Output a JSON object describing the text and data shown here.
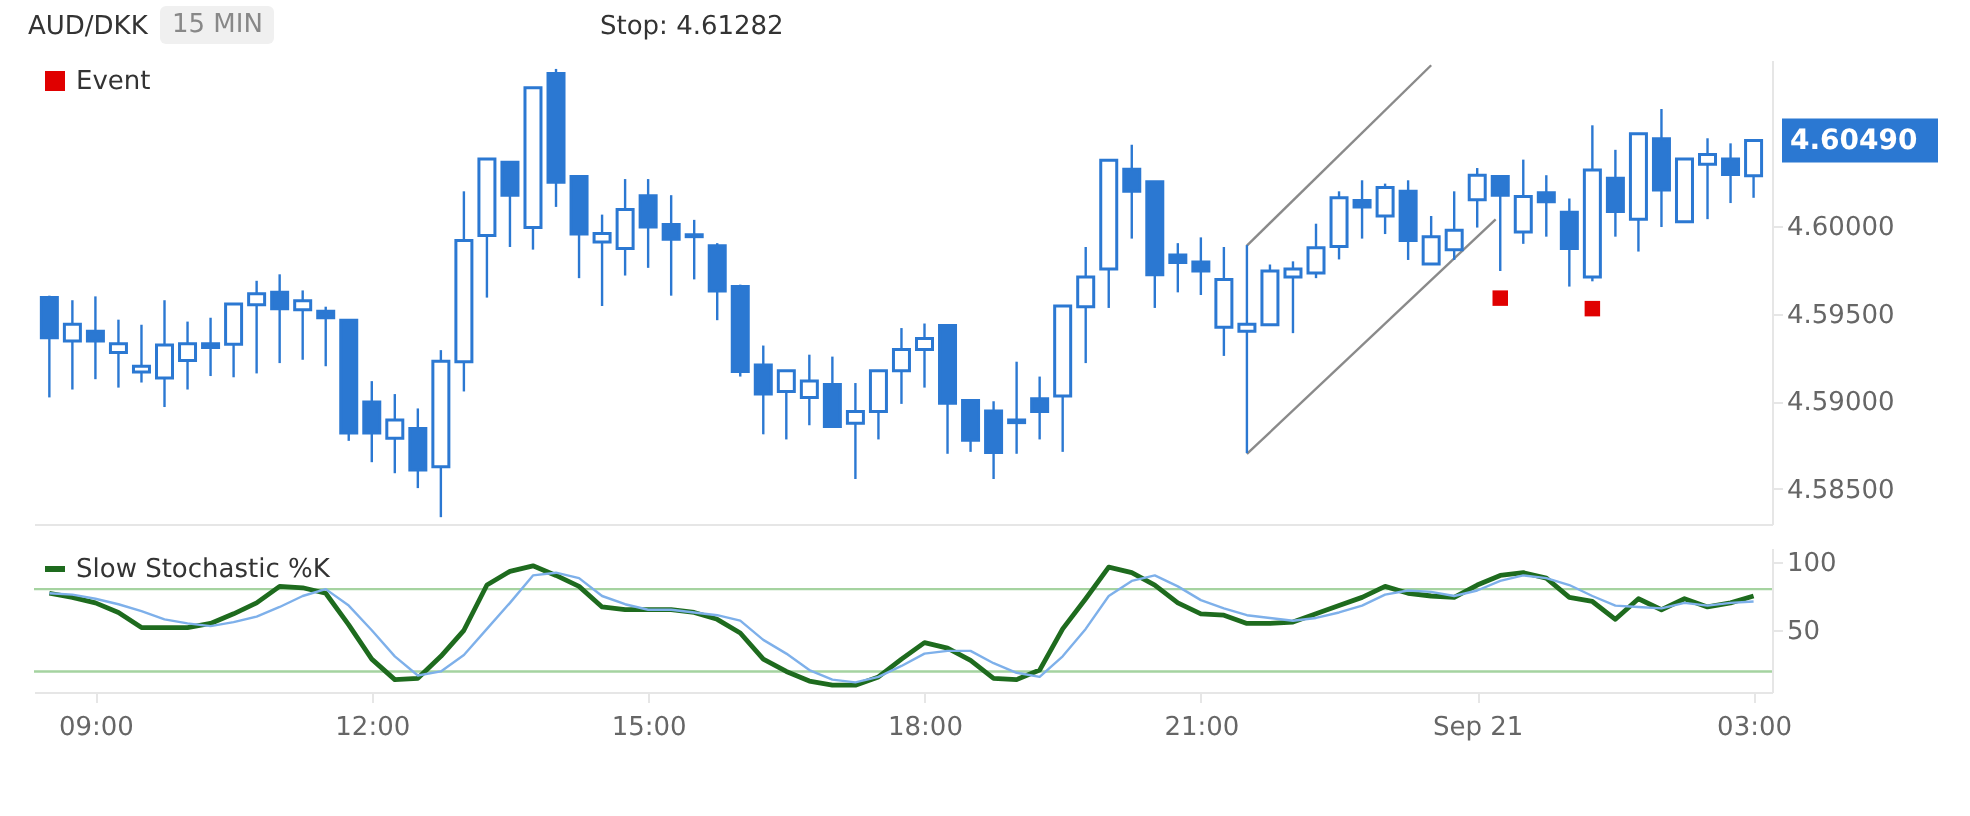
{
  "chart_data": [
    {
      "type": "candlestick",
      "title": "AUD/DKK",
      "subtitle": "15 MIN",
      "color": "#2b78d2",
      "annotations": [
        "Stop: 4.61282",
        "4.60490"
      ],
      "x": [
        "--09-20T08:30",
        "--09-20T08:45",
        "--09-20T09:00",
        "--09-20T09:15",
        "--09-20T09:30",
        "--09-20T09:45",
        "--09-20T10:00",
        "--09-20T10:15",
        "--09-20T10:30",
        "--09-20T10:45",
        "--09-20T11:00",
        "--09-20T11:15",
        "--09-20T11:30",
        "--09-20T11:45",
        "--09-20T12:00",
        "--09-20T12:15",
        "--09-20T12:30",
        "--09-20T12:45",
        "--09-20T13:00",
        "--09-20T13:15",
        "--09-20T13:30",
        "--09-20T13:45",
        "--09-20T14:00",
        "--09-20T14:15",
        "--09-20T14:30",
        "--09-20T14:45",
        "--09-20T15:00",
        "--09-20T15:15",
        "--09-20T15:30",
        "--09-20T15:45",
        "--09-20T16:00",
        "--09-20T16:15",
        "--09-20T16:30",
        "--09-20T16:45",
        "--09-20T17:00",
        "--09-20T17:15",
        "--09-20T17:30",
        "--09-20T17:45",
        "--09-20T18:00",
        "--09-20T18:15",
        "--09-20T18:30",
        "--09-20T18:45",
        "--09-20T19:00",
        "--09-20T19:15",
        "--09-20T19:30",
        "--09-20T19:45",
        "--09-20T20:00",
        "--09-20T20:15",
        "--09-20T20:30",
        "--09-20T20:45",
        "--09-20T21:00",
        "--09-20T21:15",
        "--09-20T21:30",
        "--09-20T21:45",
        "--09-20T22:00",
        "--09-20T22:15",
        "--09-20T22:30",
        "--09-20T22:45",
        "--09-20T23:00",
        "--09-20T23:15",
        "--09-20T23:30",
        "--09-20T23:45",
        "--09-21T00:00",
        "--09-21T00:15",
        "--09-21T00:30",
        "--09-21T00:45",
        "--09-21T01:00",
        "--09-21T01:15",
        "--09-21T01:30",
        "--09-21T01:45",
        "--09-21T02:00",
        "--09-21T02:15",
        "--09-21T02:30",
        "--09-21T02:45",
        "--09-21T03:00"
      ],
      "ohlc": [
        [
          4.59593,
          4.59604,
          4.59023,
          4.59364
        ],
        [
          4.59345,
          4.59578,
          4.59068,
          4.59441
        ],
        [
          4.59401,
          4.596,
          4.59127,
          4.59345
        ],
        [
          4.59279,
          4.59467,
          4.59079,
          4.5933
        ],
        [
          4.59168,
          4.59438,
          4.59108,
          4.59201
        ],
        [
          4.59134,
          4.59578,
          4.58968,
          4.59323
        ],
        [
          4.59234,
          4.59456,
          4.59068,
          4.5933
        ],
        [
          4.5933,
          4.59478,
          4.59145,
          4.59308
        ],
        [
          4.59327,
          4.59556,
          4.59138,
          4.59556
        ],
        [
          4.59552,
          4.59689,
          4.5916,
          4.59615
        ],
        [
          4.59623,
          4.59726,
          4.59219,
          4.5953
        ],
        [
          4.59523,
          4.59634,
          4.59238,
          4.59575
        ],
        [
          4.59515,
          4.59541,
          4.59201,
          4.59478
        ],
        [
          4.59464,
          4.59464,
          4.58775,
          4.5882
        ],
        [
          4.58997,
          4.59116,
          4.58653,
          4.5882
        ],
        [
          4.5879,
          4.59042,
          4.5859,
          4.58894
        ],
        [
          4.58846,
          4.5896,
          4.58505,
          4.58609
        ],
        [
          4.58627,
          4.59293,
          4.58339,
          4.5923
        ],
        [
          4.59227,
          4.602,
          4.59057,
          4.59919
        ],
        [
          4.59948,
          4.60385,
          4.59593,
          4.60385
        ],
        [
          4.60366,
          4.60366,
          4.59882,
          4.60178
        ],
        [
          4.59993,
          4.60792,
          4.59867,
          4.60792
        ],
        [
          4.60873,
          4.60899,
          4.60111,
          4.60252
        ],
        [
          4.60285,
          4.60285,
          4.59704,
          4.59956
        ],
        [
          4.59911,
          4.60067,
          4.59545,
          4.59959
        ],
        [
          4.59874,
          4.6027,
          4.59719,
          4.60096
        ],
        [
          4.60174,
          4.6027,
          4.59763,
          4.59996
        ],
        [
          4.60011,
          4.60178,
          4.59604,
          4.59926
        ],
        [
          4.59952,
          4.60037,
          4.59697,
          4.59941
        ],
        [
          4.59889,
          4.59904,
          4.59464,
          4.5963
        ],
        [
          4.59656,
          4.59667,
          4.59142,
          4.59171
        ],
        [
          4.59208,
          4.59319,
          4.58812,
          4.59042
        ],
        [
          4.59057,
          4.59175,
          4.58783,
          4.59175
        ],
        [
          4.59023,
          4.59267,
          4.58864,
          4.59116
        ],
        [
          4.59097,
          4.59256,
          4.58857,
          4.58857
        ],
        [
          4.58875,
          4.59105,
          4.58557,
          4.58942
        ],
        [
          4.58942,
          4.59175,
          4.58783,
          4.59175
        ],
        [
          4.59175,
          4.59419,
          4.58986,
          4.59297
        ],
        [
          4.59297,
          4.59445,
          4.59079,
          4.5936
        ],
        [
          4.59434,
          4.59434,
          4.58701,
          4.5899
        ],
        [
          4.59005,
          4.59005,
          4.58712,
          4.58779
        ],
        [
          4.58946,
          4.59001,
          4.58557,
          4.58709
        ],
        [
          4.58894,
          4.59227,
          4.58701,
          4.58879
        ],
        [
          4.59016,
          4.59142,
          4.58783,
          4.58942
        ],
        [
          4.59031,
          4.59545,
          4.58712,
          4.59545
        ],
        [
          4.59541,
          4.59882,
          4.59219,
          4.59711
        ],
        [
          4.59756,
          4.60377,
          4.59534,
          4.60377
        ],
        [
          4.60326,
          4.60466,
          4.5993,
          4.602
        ],
        [
          4.60255,
          4.60255,
          4.59534,
          4.59723
        ],
        [
          4.59837,
          4.59904,
          4.59623,
          4.59793
        ],
        [
          4.59797,
          4.59937,
          4.59608,
          4.59745
        ],
        [
          4.59423,
          4.59882,
          4.5926,
          4.59697
        ],
        [
          4.59401,
          4.59893,
          4.58705,
          4.59441
        ],
        [
          4.59438,
          4.59782,
          4.59438,
          4.59745
        ],
        [
          4.59711,
          4.598,
          4.5939,
          4.59756
        ],
        [
          4.59734,
          4.60015,
          4.59704,
          4.59878
        ],
        [
          4.59885,
          4.602,
          4.59811,
          4.60163
        ],
        [
          4.60148,
          4.60263,
          4.5993,
          4.60111
        ],
        [
          4.60059,
          4.60244,
          4.59956,
          4.60222
        ],
        [
          4.602,
          4.60263,
          4.59808,
          4.59919
        ],
        [
          4.59785,
          4.60059,
          4.59782,
          4.59941
        ],
        [
          4.59867,
          4.602,
          4.59808,
          4.59978
        ],
        [
          4.60152,
          4.60333,
          4.59993,
          4.60292
        ],
        [
          4.60285,
          4.60292,
          4.59745,
          4.60178
        ],
        [
          4.59967,
          4.60381,
          4.599,
          4.6017
        ],
        [
          4.60192,
          4.60292,
          4.59941,
          4.60141
        ],
        [
          4.60081,
          4.60159,
          4.59656,
          4.59874
        ],
        [
          4.59711,
          4.60577,
          4.59686,
          4.60322
        ],
        [
          4.60274,
          4.60437,
          4.59941,
          4.60085
        ],
        [
          4.60041,
          4.60529,
          4.59856,
          4.60529
        ],
        [
          4.605,
          4.6067,
          4.59996,
          4.60207
        ],
        [
          4.60026,
          4.60385,
          4.60026,
          4.60385
        ],
        [
          4.60355,
          4.60503,
          4.60041,
          4.60411
        ],
        [
          4.60385,
          4.60474,
          4.60133,
          4.60296
        ],
        [
          4.60289,
          4.6049,
          4.60163,
          4.6049
        ]
      ],
      "series": [
        {
          "name": "Event",
          "type": "scatter",
          "marker": "square",
          "color": "#e00000",
          "x": [
            "--09-21T00:15",
            "--09-21T01:15"
          ],
          "values": [
            4.5959,
            4.5953
          ]
        },
        {
          "type": "line",
          "color": "#8a8a8a",
          "x": [
            "--09-20T21:30",
            "--09-20T23:30"
          ],
          "values": [
            4.5989,
            4.6092
          ]
        },
        {
          "type": "line",
          "color": "#8a8a8a",
          "x": [
            "--09-20T21:30",
            "--09-21T00:12"
          ],
          "values": [
            4.587,
            4.6004
          ]
        }
      ],
      "xlim": [
        "--09-20T08:20",
        "--09-21T03:12"
      ],
      "ylim": [
        4.583,
        4.6095
      ],
      "yticks": [
        {
          "value": 4.585,
          "label": "4.58500"
        },
        {
          "value": 4.59,
          "label": "4.59000"
        },
        {
          "value": 4.595,
          "label": "4.59500"
        },
        {
          "value": 4.6,
          "label": "4.60000"
        }
      ],
      "tick_labels": "y",
      "legend": "top left"
    },
    {
      "type": "line",
      "x": [
        "--09-20T08:30",
        "--09-20T08:45",
        "--09-20T09:00",
        "--09-20T09:15",
        "--09-20T09:30",
        "--09-20T09:45",
        "--09-20T10:00",
        "--09-20T10:15",
        "--09-20T10:30",
        "--09-20T10:45",
        "--09-20T11:00",
        "--09-20T11:15",
        "--09-20T11:30",
        "--09-20T11:45",
        "--09-20T12:00",
        "--09-20T12:15",
        "--09-20T12:30",
        "--09-20T12:45",
        "--09-20T13:00",
        "--09-20T13:15",
        "--09-20T13:30",
        "--09-20T13:45",
        "--09-20T14:00",
        "--09-20T14:15",
        "--09-20T14:30",
        "--09-20T14:45",
        "--09-20T15:00",
        "--09-20T15:15",
        "--09-20T15:30",
        "--09-20T15:45",
        "--09-20T16:00",
        "--09-20T16:15",
        "--09-20T16:30",
        "--09-20T16:45",
        "--09-20T17:00",
        "--09-20T17:15",
        "--09-20T17:30",
        "--09-20T17:45",
        "--09-20T18:00",
        "--09-20T18:15",
        "--09-20T18:30",
        "--09-20T18:45",
        "--09-20T19:00",
        "--09-20T19:15",
        "--09-20T19:30",
        "--09-20T19:45",
        "--09-20T20:00",
        "--09-20T20:15",
        "--09-20T20:30",
        "--09-20T20:45",
        "--09-20T21:00",
        "--09-20T21:15",
        "--09-20T21:30",
        "--09-20T21:45",
        "--09-20T22:00",
        "--09-20T22:15",
        "--09-20T22:30",
        "--09-20T22:45",
        "--09-20T23:00",
        "--09-20T23:15",
        "--09-20T23:30",
        "--09-20T23:45",
        "--09-21T00:00",
        "--09-21T00:15",
        "--09-21T00:30",
        "--09-21T00:45",
        "--09-21T01:00",
        "--09-21T01:15",
        "--09-21T01:30",
        "--09-21T01:45",
        "--09-21T02:00",
        "--09-21T02:15",
        "--09-21T02:30",
        "--09-21T02:45",
        "--09-21T03:00"
      ],
      "series": [
        {
          "name": "Slow Stochastic %K",
          "color": "#1e6b1e",
          "values": [
            77,
            74,
            70,
            63,
            52,
            52,
            52,
            55,
            62,
            70,
            82,
            81,
            77,
            54,
            29,
            14,
            15,
            31,
            50,
            83,
            93,
            97,
            90,
            82,
            67,
            65,
            65,
            65,
            63,
            58,
            48,
            29,
            20,
            13,
            10,
            10,
            16,
            29,
            41,
            37,
            28,
            15,
            14,
            21,
            51,
            73,
            96,
            92,
            83,
            70,
            62,
            61,
            55,
            55,
            56,
            62,
            68,
            74,
            82,
            77,
            75,
            74,
            83,
            90,
            92,
            88,
            74,
            71,
            58,
            73,
            65,
            73,
            67,
            70,
            75
          ]
        },
        {
          "color": "#7eb0ea",
          "values": [
            77,
            76,
            73,
            69,
            64,
            58,
            55,
            53,
            56,
            60,
            67,
            75,
            80,
            68,
            50,
            31,
            17,
            20,
            32,
            51,
            70,
            90,
            92,
            88,
            75,
            69,
            65,
            65,
            63,
            61,
            57,
            43,
            33,
            21,
            14,
            12,
            16,
            24,
            33,
            35,
            35,
            26,
            19,
            16,
            31,
            51,
            75,
            86,
            90,
            82,
            72,
            66,
            61,
            59,
            57,
            59,
            63,
            68,
            76,
            79,
            78,
            75,
            79,
            86,
            90,
            88,
            83,
            75,
            68,
            67,
            66,
            70,
            68,
            70,
            71
          ]
        }
      ],
      "ref_lines": [
        {
          "axis": "y",
          "value": 80,
          "color": "#a5d3a0"
        },
        {
          "axis": "y",
          "value": 20,
          "color": "#a5d3a0"
        }
      ],
      "xlim": [
        "--09-20T08:20",
        "--09-21T03:12"
      ],
      "ylim": [
        5,
        110
      ],
      "xticks": [
        {
          "value": "--09-20T09:00",
          "label": "09:00"
        },
        {
          "value": "--09-20T12:00",
          "label": "12:00"
        },
        {
          "value": "--09-20T15:00",
          "label": "15:00"
        },
        {
          "value": "--09-20T18:00",
          "label": "18:00"
        },
        {
          "value": "--09-20T21:00",
          "label": "21:00"
        },
        {
          "value": "--09-21T00:00",
          "label": "Sep 21"
        },
        {
          "value": "--09-21T03:00",
          "label": "03:00"
        }
      ],
      "yticks": [
        50,
        100
      ],
      "legend": "top left"
    }
  ]
}
